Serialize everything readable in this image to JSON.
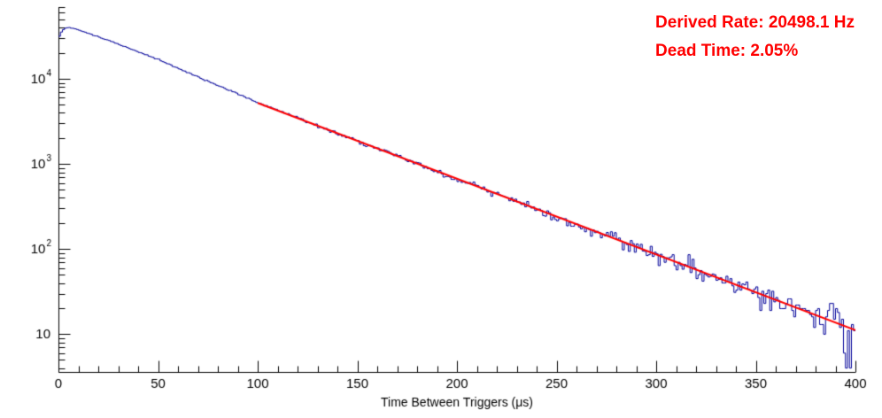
{
  "annotations": {
    "derived_rate": "Derived Rate: 20498.1 Hz",
    "dead_time": "Dead Time: 2.05%"
  },
  "colors": {
    "annotation": "#ff0000",
    "axis": "#000000",
    "background": "#ffffff",
    "histogram": "#000099",
    "fit": "#ff0000"
  },
  "chart_data": {
    "type": "line",
    "subtype": "step-histogram-with-exponential-fit",
    "title": "",
    "xlabel": "Time Between Triggers (μs)",
    "ylabel": "",
    "xlim": [
      0,
      400
    ],
    "ylim": [
      3.6,
      70000
    ],
    "yscale": "log",
    "grid": false,
    "legend": "none",
    "x_major_ticks": [
      0,
      50,
      100,
      150,
      200,
      250,
      300,
      350,
      400
    ],
    "x_minor_step": 10,
    "y_decade_labels": [
      "10",
      "10^2",
      "10^3",
      "10^4"
    ],
    "bin_width_us": 1,
    "histogram": {
      "color": "#000099",
      "key_points": [
        [
          0,
          29000
        ],
        [
          1,
          34500
        ],
        [
          3,
          39500
        ],
        [
          5,
          40500
        ],
        [
          8,
          39000
        ],
        [
          15,
          34500
        ],
        [
          25,
          28500
        ],
        [
          50,
          17000
        ],
        [
          75,
          9400
        ],
        [
          100,
          5300
        ],
        [
          125,
          3150
        ],
        [
          150,
          1870
        ],
        [
          175,
          1120
        ],
        [
          200,
          660
        ],
        [
          225,
          395
        ],
        [
          250,
          238
        ],
        [
          275,
          142
        ],
        [
          300,
          86
        ],
        [
          325,
          51
        ],
        [
          350,
          31
        ],
        [
          375,
          18.5
        ],
        [
          400,
          11.2
        ]
      ],
      "noise_model": "poisson",
      "noise_seed": 1337
    },
    "fit": {
      "color": "#ff0000",
      "x_min": 100,
      "x_max": 400,
      "amplitude": 40600,
      "tau_us": 48.8
    },
    "derived_rate_hz": 20498.1,
    "dead_time_pct": 2.05
  }
}
